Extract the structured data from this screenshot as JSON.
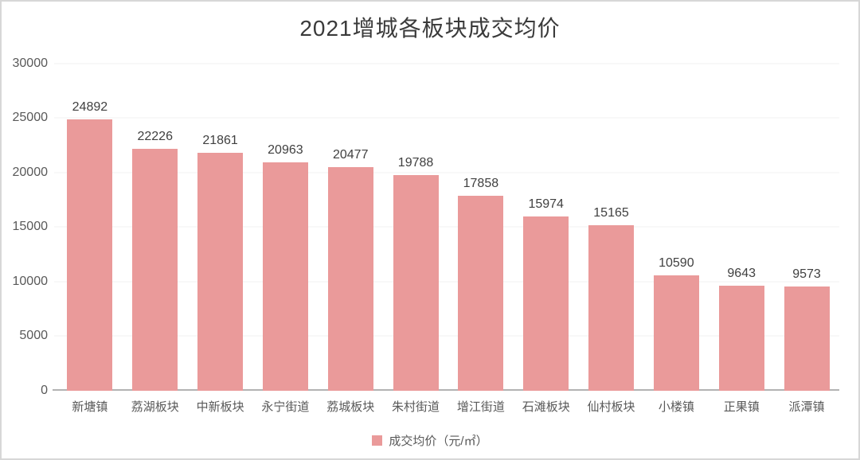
{
  "chart_data": {
    "type": "bar",
    "title": "2021增城各板块成交均价",
    "categories": [
      "新塘镇",
      "荔湖板块",
      "中新板块",
      "永宁街道",
      "荔城板块",
      "朱村街道",
      "增江街道",
      "石滩板块",
      "仙村板块",
      "小楼镇",
      "正果镇",
      "派潭镇"
    ],
    "values": [
      24892,
      22226,
      21861,
      20963,
      20477,
      19788,
      17858,
      15974,
      15165,
      10590,
      9643,
      9573
    ],
    "xlabel": "",
    "ylabel": "",
    "ylim": [
      0,
      30000
    ],
    "yticks": [
      0,
      5000,
      10000,
      15000,
      20000,
      25000,
      30000
    ],
    "grid": true,
    "data_labels": true,
    "legend_position": "bottom",
    "legend": {
      "label": "成交均价（元/㎡）"
    }
  },
  "colors": {
    "bar": "#ea9a9a",
    "gridline": "#f0f0f0",
    "axis_line": "#b3b3b3",
    "title_text": "#3a3a3a",
    "value_label_text": "#404040",
    "tick_text": "#595959",
    "frame_border": "#d7d7d7"
  }
}
